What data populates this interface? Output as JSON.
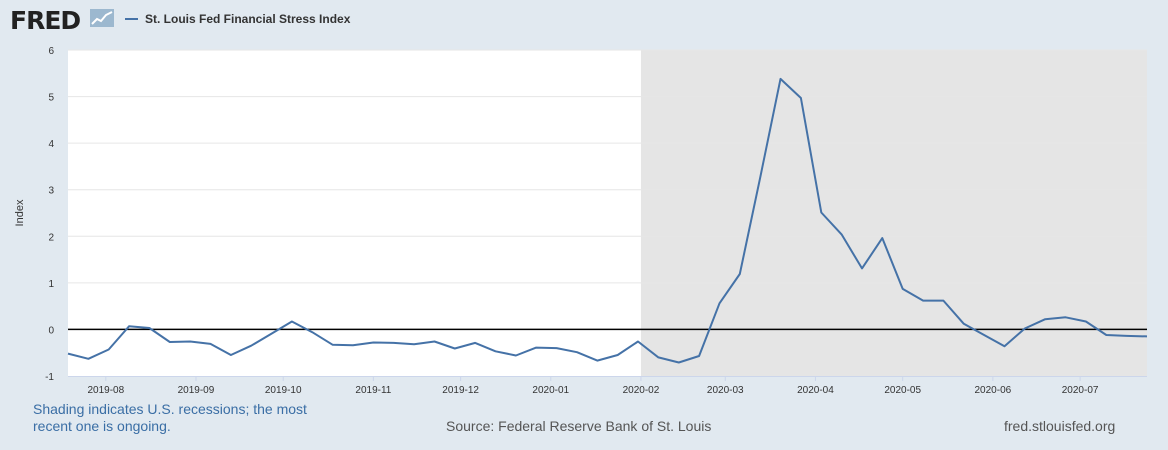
{
  "header": {
    "logo_text": "FRED",
    "logo_icon": "fred-graph-logo-icon",
    "legend_label": "St. Louis Fed Financial Stress Index",
    "series_color": "#4572a7"
  },
  "footer": {
    "recession_note": "Shading indicates U.S. recessions; the most recent one is ongoing.",
    "source": "Source: Federal Reserve Bank of St. Louis",
    "site": "fred.stlouisfed.org"
  },
  "chart_data": {
    "type": "line",
    "title": "",
    "xlabel": "",
    "ylabel": "Index",
    "ylim": [
      -1,
      6
    ],
    "yticks": [
      -1,
      0,
      1,
      2,
      3,
      4,
      5,
      6
    ],
    "xlim": [
      "2019-07-19",
      "2020-07-24"
    ],
    "x_tick_labels": [
      "2019-08",
      "2019-09",
      "2019-10",
      "2019-11",
      "2019-12",
      "2020-01",
      "2020-02",
      "2020-03",
      "2020-04",
      "2020-05",
      "2020-06",
      "2020-07"
    ],
    "x_tick_dates": [
      "2019-08-01",
      "2019-09-01",
      "2019-10-01",
      "2019-11-01",
      "2019-12-01",
      "2020-01-01",
      "2020-02-01",
      "2020-03-01",
      "2020-04-01",
      "2020-05-01",
      "2020-06-01",
      "2020-07-01"
    ],
    "grid": true,
    "zero_line": true,
    "recession_shading": [
      {
        "start": "2020-02-01",
        "end": "2020-07-24"
      }
    ],
    "colors": {
      "series": "#4572a7",
      "recession": "#e5e5e5",
      "plot_background": "#ffffff",
      "page_background": "#e1e9f0",
      "gridline": "#e6e6e6",
      "zero_line": "#000000"
    },
    "series": [
      {
        "name": "St. Louis Fed Financial Stress Index",
        "color": "#4572a7",
        "x": [
          "2019-07-19",
          "2019-07-26",
          "2019-08-02",
          "2019-08-09",
          "2019-08-16",
          "2019-08-23",
          "2019-08-30",
          "2019-09-06",
          "2019-09-13",
          "2019-09-20",
          "2019-09-27",
          "2019-10-04",
          "2019-10-11",
          "2019-10-18",
          "2019-10-25",
          "2019-11-01",
          "2019-11-08",
          "2019-11-15",
          "2019-11-22",
          "2019-11-29",
          "2019-12-06",
          "2019-12-13",
          "2019-12-20",
          "2019-12-27",
          "2020-01-03",
          "2020-01-10",
          "2020-01-17",
          "2020-01-24",
          "2020-01-31",
          "2020-02-07",
          "2020-02-14",
          "2020-02-21",
          "2020-02-28",
          "2020-03-06",
          "2020-03-13",
          "2020-03-20",
          "2020-03-27",
          "2020-04-03",
          "2020-04-10",
          "2020-04-17",
          "2020-04-24",
          "2020-05-01",
          "2020-05-08",
          "2020-05-15",
          "2020-05-22",
          "2020-05-29",
          "2020-06-05",
          "2020-06-12",
          "2020-06-19",
          "2020-06-26",
          "2020-07-03",
          "2020-07-10",
          "2020-07-17",
          "2020-07-24"
        ],
        "values": [
          -0.52,
          -0.63,
          -0.43,
          0.07,
          0.03,
          -0.27,
          -0.26,
          -0.31,
          -0.55,
          -0.35,
          -0.09,
          0.17,
          -0.06,
          -0.33,
          -0.34,
          -0.28,
          -0.29,
          -0.32,
          -0.26,
          -0.41,
          -0.29,
          -0.47,
          -0.56,
          -0.39,
          -0.4,
          -0.49,
          -0.67,
          -0.55,
          -0.26,
          -0.6,
          -0.71,
          -0.57,
          0.56,
          1.19,
          3.26,
          5.38,
          4.97,
          2.51,
          2.04,
          1.31,
          1.96,
          0.87,
          0.62,
          0.62,
          0.12,
          -0.12,
          -0.36,
          0.02,
          0.22,
          0.26,
          0.17,
          -0.12,
          -0.14,
          -0.15
        ]
      }
    ]
  }
}
